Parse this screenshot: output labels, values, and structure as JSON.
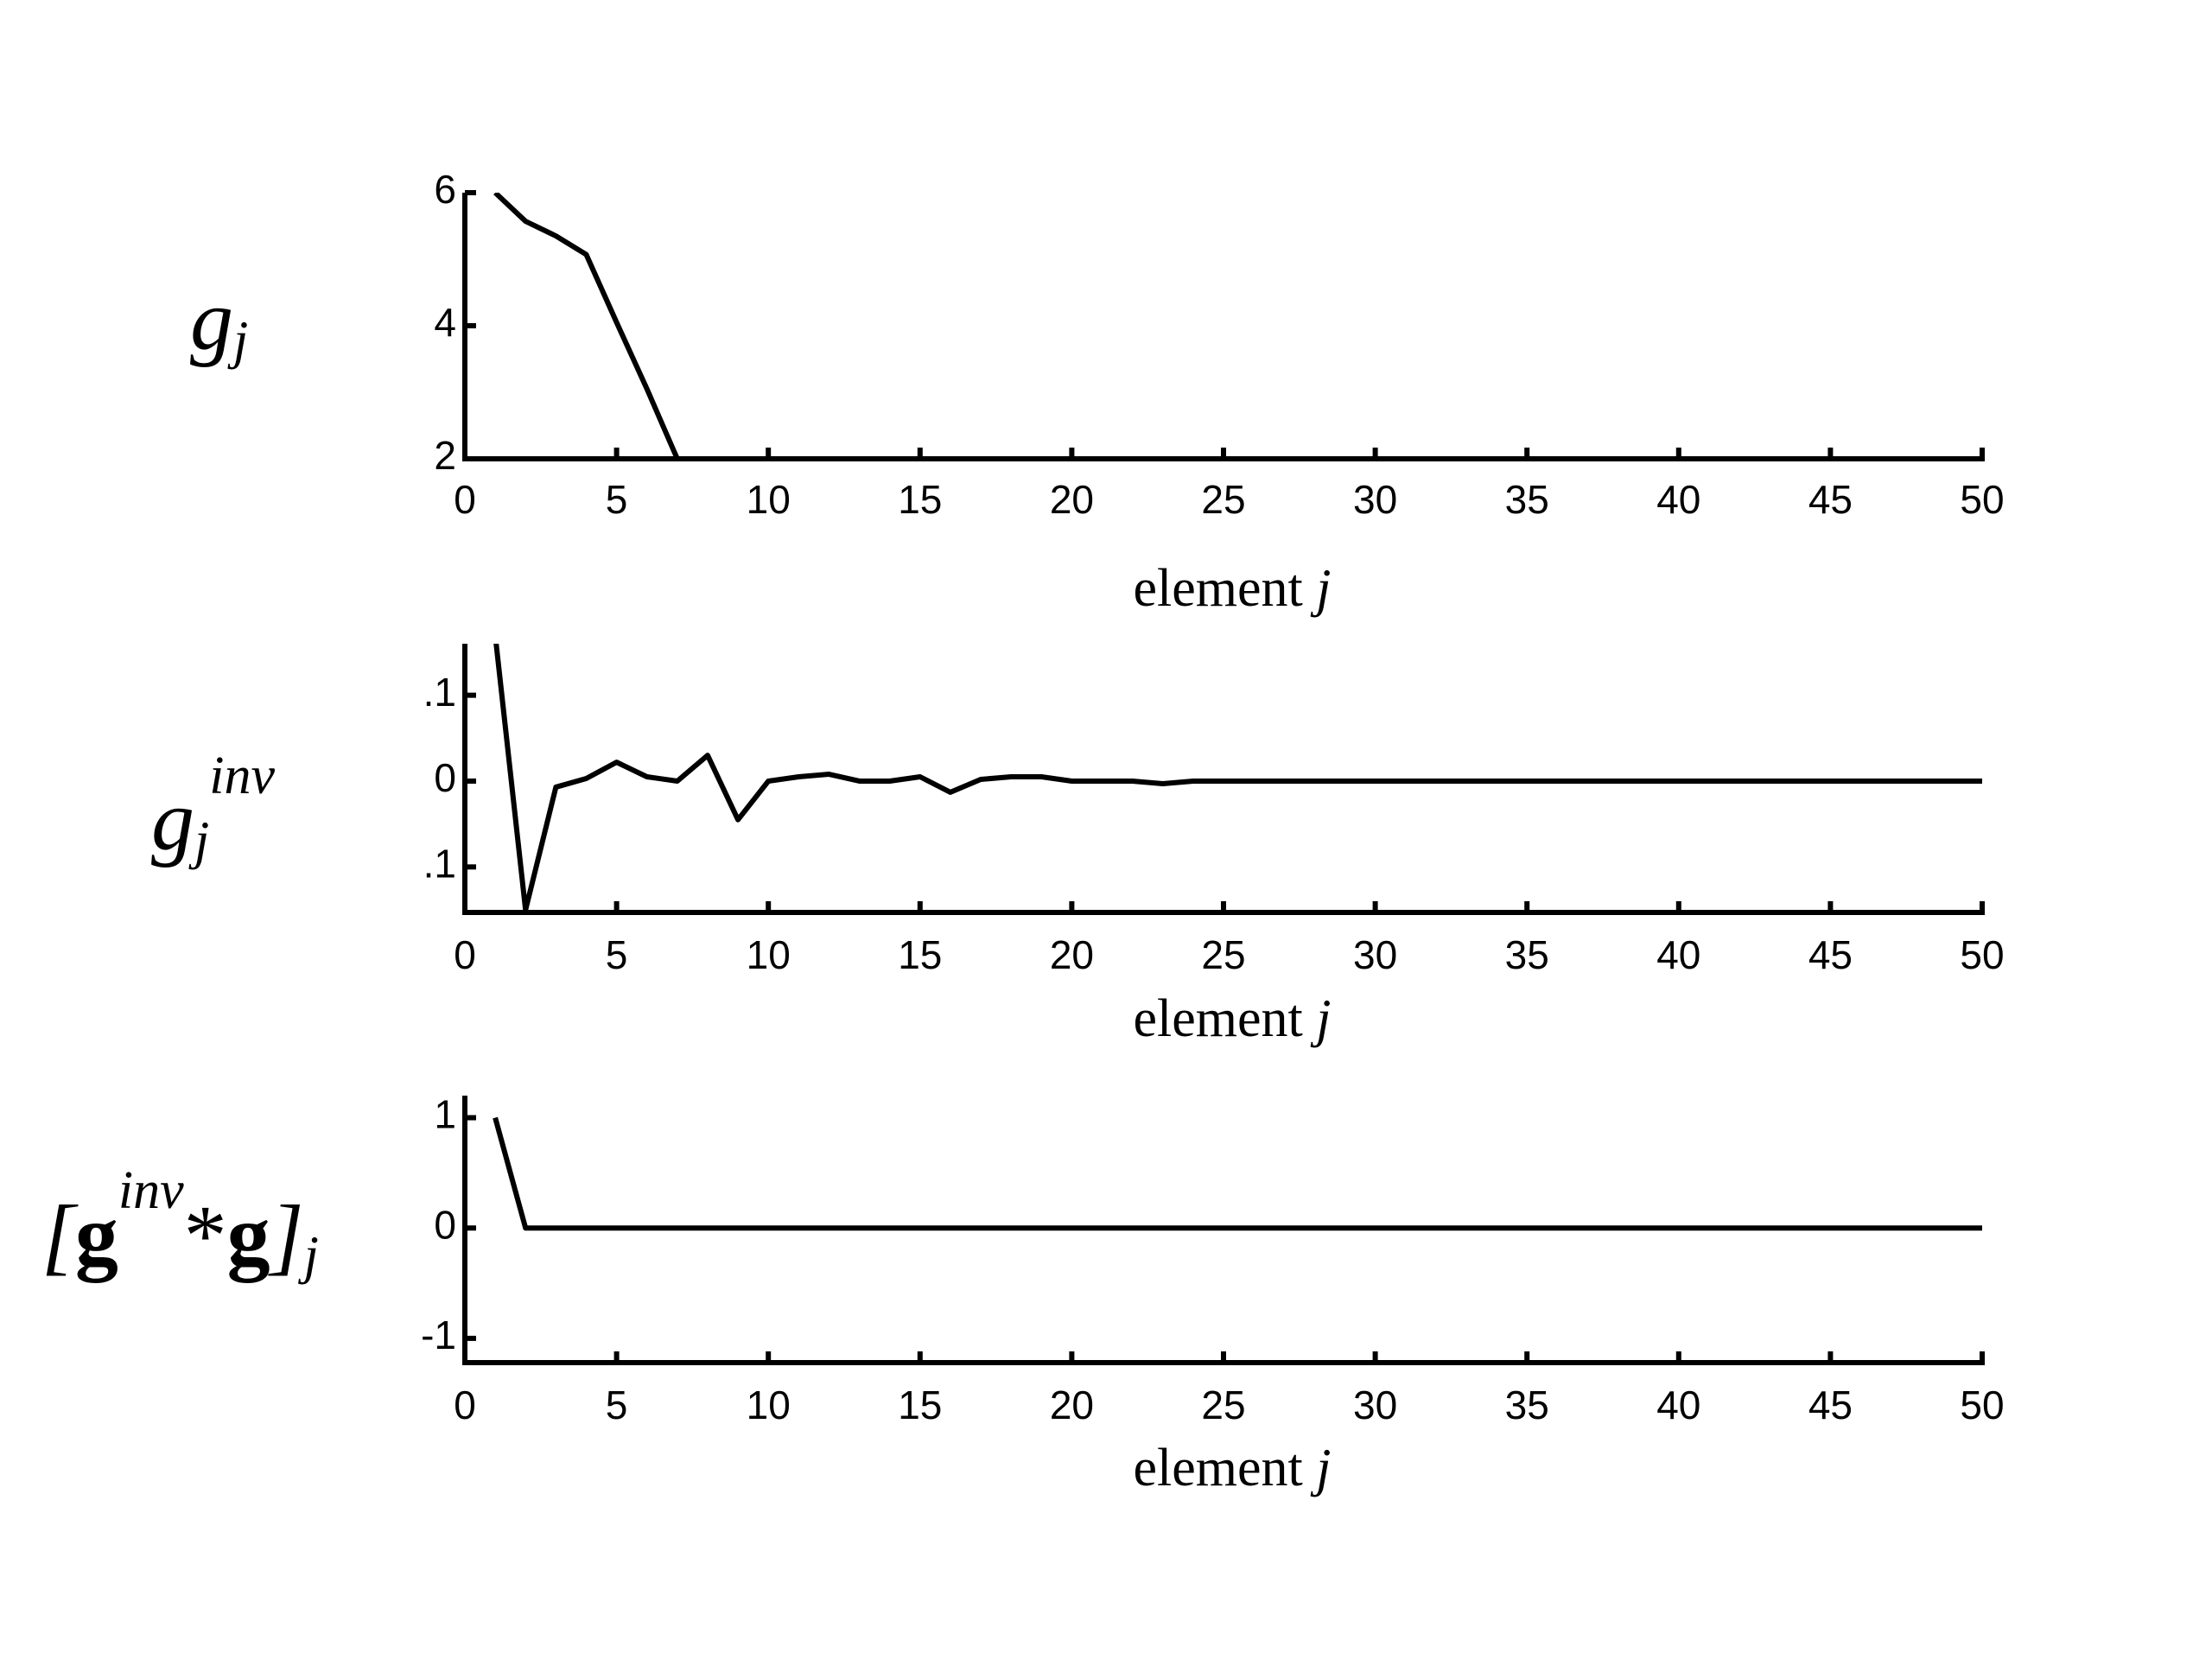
{
  "chart_data": [
    {
      "type": "line",
      "ylabel": [
        {
          "text": "g",
          "style": "italic"
        },
        {
          "text": "j",
          "style": "italic-sub"
        }
      ],
      "xlabel": [
        {
          "text": "element",
          "style": "roman"
        },
        {
          "text": "j",
          "style": "italic"
        }
      ],
      "x": [
        1,
        2,
        3,
        4,
        5,
        6,
        7,
        8,
        9,
        10,
        11,
        12,
        13,
        14,
        15,
        16,
        17,
        18,
        19,
        20,
        21,
        22,
        23,
        24,
        25,
        26,
        27,
        28,
        29,
        30,
        31,
        32,
        33,
        34,
        35,
        36,
        37,
        38,
        39,
        40,
        41,
        42,
        43,
        44,
        45,
        46,
        47,
        48,
        49,
        50
      ],
      "values": [
        6,
        5.57,
        5.35,
        5.07,
        4.05,
        3.05,
        2,
        2,
        2,
        2,
        2,
        2,
        2,
        2,
        2,
        2,
        2,
        2,
        2,
        2,
        2,
        2,
        2,
        2,
        2,
        2,
        2,
        2,
        2,
        2,
        2,
        2,
        2,
        2,
        2,
        2,
        2,
        2,
        2,
        2,
        2,
        2,
        2,
        2,
        2,
        2,
        2,
        2,
        2,
        2
      ],
      "color": "#000000",
      "xlim": [
        0,
        50
      ],
      "xticks": [
        0,
        5,
        10,
        15,
        20,
        25,
        30,
        35,
        40,
        45,
        50
      ],
      "ylim": [
        2,
        6
      ],
      "yticks": [
        2,
        4,
        6
      ]
    },
    {
      "type": "line",
      "ylabel": [
        {
          "text": "g",
          "style": "italic"
        },
        {
          "text": "j",
          "style": "italic-sub"
        },
        {
          "text": "inv",
          "style": "italic-sup"
        }
      ],
      "xlabel": [
        {
          "text": "element",
          "style": "roman"
        },
        {
          "text": "j",
          "style": "italic"
        }
      ],
      "x": [
        1,
        2,
        3,
        4,
        5,
        6,
        7,
        8,
        9,
        10,
        11,
        12,
        13,
        14,
        15,
        16,
        17,
        18,
        19,
        20,
        21,
        22,
        23,
        24,
        25,
        26,
        27,
        28,
        29,
        30,
        31,
        32,
        33,
        34,
        35,
        36,
        37,
        38,
        39,
        40,
        41,
        42,
        43,
        44,
        45,
        46,
        47,
        48,
        49,
        50
      ],
      "values": [
        0.17,
        -0.15,
        -0.007,
        0.003,
        0.022,
        0.005,
        0,
        0.03,
        -0.045,
        0,
        0.005,
        0.008,
        0,
        0,
        0.005,
        -0.013,
        0.002,
        0.005,
        0.005,
        0,
        0,
        0,
        -0.003,
        0,
        0,
        0,
        0,
        0,
        0,
        0,
        0,
        0,
        0,
        0,
        0,
        0,
        0,
        0,
        0,
        0,
        0,
        0,
        0,
        0,
        0,
        0,
        0,
        0,
        0,
        0
      ],
      "color": "#000000",
      "xlim": [
        0,
        50
      ],
      "xticks": [
        0,
        5,
        10,
        15,
        20,
        25,
        30,
        35,
        40,
        45,
        50
      ],
      "ylim": [
        -0.153,
        0.16
      ],
      "yticks": [
        {
          "value": -0.1,
          "label": ".1"
        },
        0,
        {
          "value": 0.1,
          "label": ".1"
        }
      ]
    },
    {
      "type": "line",
      "ylabel": [
        {
          "text": "[",
          "style": "italic"
        },
        {
          "text": "g",
          "style": "bold"
        },
        {
          "text": "inv",
          "style": "italic-sup"
        },
        {
          "text": "*",
          "style": "roman"
        },
        {
          "text": "g",
          "style": "bold"
        },
        {
          "text": "]",
          "style": "italic"
        },
        {
          "text": "j",
          "style": "italic-sub"
        }
      ],
      "xlabel": [
        {
          "text": "element",
          "style": "roman"
        },
        {
          "text": "j",
          "style": "italic"
        }
      ],
      "x": [
        1,
        2,
        3,
        4,
        5,
        6,
        7,
        8,
        9,
        10,
        11,
        12,
        13,
        14,
        15,
        16,
        17,
        18,
        19,
        20,
        21,
        22,
        23,
        24,
        25,
        26,
        27,
        28,
        29,
        30,
        31,
        32,
        33,
        34,
        35,
        36,
        37,
        38,
        39,
        40,
        41,
        42,
        43,
        44,
        45,
        46,
        47,
        48,
        49,
        50
      ],
      "values": [
        1,
        0,
        0,
        0,
        0,
        0,
        0,
        0,
        0,
        0,
        0,
        0,
        0,
        0,
        0,
        0,
        0,
        0,
        0,
        0,
        0,
        0,
        0,
        0,
        0,
        0,
        0,
        0,
        0,
        0,
        0,
        0,
        0,
        0,
        0,
        0,
        0,
        0,
        0,
        0,
        0,
        0,
        0,
        0,
        0,
        0,
        0,
        0,
        0,
        0
      ],
      "color": "#000000",
      "xlim": [
        0,
        50
      ],
      "xticks": [
        0,
        5,
        10,
        15,
        20,
        25,
        30,
        35,
        40,
        45,
        50
      ],
      "ylim": [
        -1.22,
        1.2
      ],
      "yticks": [
        -1,
        0,
        1
      ]
    }
  ]
}
